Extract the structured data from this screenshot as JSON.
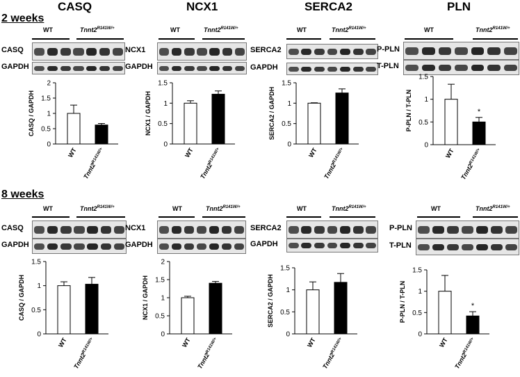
{
  "headers": [
    "CASQ",
    "NCX1",
    "SERCA2",
    "PLN"
  ],
  "sections": [
    "2 weeks",
    "8 weeks"
  ],
  "group_labels": {
    "wt": "WT",
    "mut_main": "Tnnt2",
    "mut_sup": "R141W/+"
  },
  "blot_labels": {
    "casq": [
      "CASQ",
      "GAPDH"
    ],
    "ncx1": [
      "NCX1",
      "GAPDH"
    ],
    "serca2": [
      "SERCA2",
      "GAPDH"
    ],
    "pln": [
      "P-PLN",
      "T-PLN"
    ]
  },
  "colors": {
    "wt_bar": "#ffffff",
    "mut_bar": "#000000",
    "band": "#1a1a1a",
    "blot_bg": "#e6e6e6"
  },
  "chart_data": [
    {
      "type": "bar",
      "id": "2w-casq",
      "categories": [
        "WT",
        "Tnnt2R141W/+"
      ],
      "values": [
        1.0,
        0.62
      ],
      "errors": [
        0.27,
        0.05
      ],
      "ylabel": "CASQ / GAPDH",
      "ylim": [
        0,
        2
      ],
      "yticks": [
        "0",
        "0.5",
        "1",
        "1.5",
        "2"
      ],
      "annotations": [
        "",
        ""
      ]
    },
    {
      "type": "bar",
      "id": "2w-ncx1",
      "categories": [
        "WT",
        "Tnnt2R141W/+"
      ],
      "values": [
        1.0,
        1.22
      ],
      "errors": [
        0.06,
        0.08
      ],
      "ylabel": "NCX1 / GAPDH",
      "ylim": [
        0,
        1.5
      ],
      "yticks": [
        "0",
        "0.5",
        "1",
        "1.5"
      ],
      "annotations": [
        "",
        ""
      ]
    },
    {
      "type": "bar",
      "id": "2w-serca2",
      "categories": [
        "WT",
        "Tnnt2R141W/+"
      ],
      "values": [
        1.0,
        1.25
      ],
      "errors": [
        0.01,
        0.1
      ],
      "ylabel": "SERCA2 / GAPDH",
      "ylim": [
        0,
        1.5
      ],
      "yticks": [
        "0",
        "0.5",
        "1",
        "1.5"
      ],
      "annotations": [
        "",
        ""
      ]
    },
    {
      "type": "bar",
      "id": "2w-pln",
      "categories": [
        "WT",
        "Tnnt2R141W/+"
      ],
      "values": [
        1.0,
        0.5
      ],
      "errors": [
        0.33,
        0.1
      ],
      "ylabel": "P-PLN / T-PLN",
      "ylim": [
        0,
        1.5
      ],
      "yticks": [
        "0",
        "0.5",
        "1",
        "1.5"
      ],
      "annotations": [
        "",
        "*"
      ]
    },
    {
      "type": "bar",
      "id": "8w-casq",
      "categories": [
        "WT",
        "Tnnt2R141W/+"
      ],
      "values": [
        1.0,
        1.03
      ],
      "errors": [
        0.08,
        0.14
      ],
      "ylabel": "CASQ / GAPDH",
      "ylim": [
        0,
        1.5
      ],
      "yticks": [
        "0",
        "0.5",
        "1",
        "1.5"
      ],
      "annotations": [
        "",
        ""
      ]
    },
    {
      "type": "bar",
      "id": "8w-ncx1",
      "categories": [
        "WT",
        "Tnnt2R141W/+"
      ],
      "values": [
        1.0,
        1.4
      ],
      "errors": [
        0.04,
        0.05
      ],
      "ylabel": "NCX1 / GAPDH",
      "ylim": [
        0,
        2
      ],
      "yticks": [
        "0",
        "0.5",
        "1",
        "1.5",
        "2"
      ],
      "annotations": [
        "",
        ""
      ]
    },
    {
      "type": "bar",
      "id": "8w-serca2",
      "categories": [
        "WT",
        "Tnnt2R141W/+"
      ],
      "values": [
        1.0,
        1.17
      ],
      "errors": [
        0.18,
        0.2
      ],
      "ylabel": "SERCA2 / GAPDH",
      "ylim": [
        0,
        1.5
      ],
      "yticks": [
        "0",
        "0.5",
        "1",
        "1.5"
      ],
      "annotations": [
        "",
        ""
      ]
    },
    {
      "type": "bar",
      "id": "8w-pln",
      "categories": [
        "WT",
        "Tnnt2R141W/+"
      ],
      "values": [
        1.0,
        0.42
      ],
      "errors": [
        0.37,
        0.1
      ],
      "ylabel": "P-PLN / T-PLN",
      "ylim": [
        0,
        1.5
      ],
      "yticks": [
        "0",
        "0.5",
        "1",
        "1.5"
      ],
      "annotations": [
        "",
        "*"
      ]
    }
  ]
}
